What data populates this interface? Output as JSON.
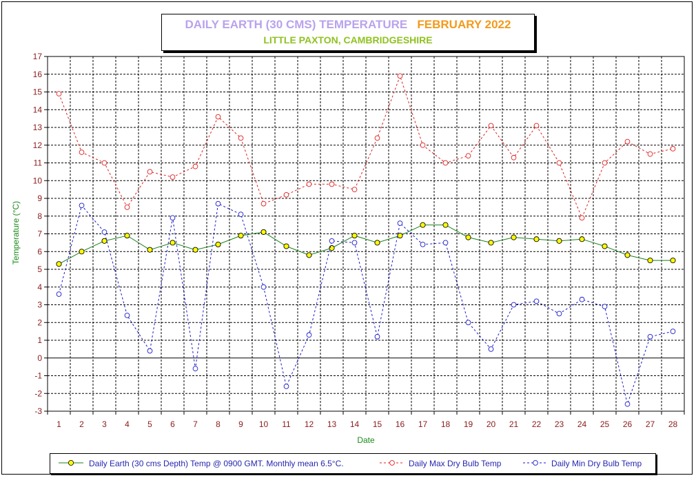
{
  "title": {
    "main": "DAILY EARTH (30 CMS) TEMPERATURE",
    "date": "FEBRUARY 2022",
    "subtitle": "LITTLE PAXTON, CAMBRIDGESHIRE"
  },
  "colors": {
    "title_main": "#b9a2ee",
    "title_date": "#f39a1a",
    "subtitle": "#8fc21f",
    "axis_text": "#8b1a1a",
    "axis_label": "#1a8a1a",
    "earth_line": "#1a7f1a",
    "earth_marker": "#ffff00",
    "max_series": "#e02020",
    "min_series": "#1a1acc",
    "legend_text": "#2626b0"
  },
  "chart_data": {
    "type": "line",
    "xlabel": "Date",
    "ylabel": "Temperature (°C)",
    "ylim": [
      -3,
      17
    ],
    "yticks": [
      -3,
      -2,
      -1,
      0,
      1,
      2,
      3,
      4,
      5,
      6,
      7,
      8,
      9,
      10,
      11,
      12,
      13,
      14,
      15,
      16,
      17
    ],
    "grid": true,
    "legend_position": "bottom",
    "categories": [
      1,
      2,
      3,
      4,
      5,
      6,
      7,
      8,
      9,
      10,
      11,
      12,
      13,
      14,
      15,
      16,
      17,
      18,
      19,
      20,
      21,
      22,
      23,
      24,
      25,
      26,
      27,
      28
    ],
    "series": [
      {
        "name": "Daily Earth (30 cms Depth) Temp @ 0900 GMT. Monthly mean 6.5°C.",
        "style": "solid",
        "marker": "filled-circle",
        "values": [
          5.3,
          6.0,
          6.6,
          6.9,
          6.1,
          6.5,
          6.1,
          6.4,
          6.9,
          7.1,
          6.3,
          5.8,
          6.2,
          6.9,
          6.5,
          6.9,
          7.5,
          7.5,
          6.8,
          6.5,
          6.8,
          6.7,
          6.6,
          6.7,
          6.3,
          5.8,
          5.5,
          5.5
        ]
      },
      {
        "name": "Daily Max Dry Bulb Temp",
        "style": "dashed",
        "marker": "open-circle",
        "values": [
          14.9,
          11.6,
          11.0,
          8.5,
          10.5,
          10.2,
          10.8,
          13.6,
          12.4,
          8.7,
          9.2,
          9.8,
          9.8,
          9.5,
          12.4,
          15.9,
          12.0,
          11.0,
          11.4,
          13.1,
          11.3,
          13.1,
          11.0,
          7.9,
          11.0,
          12.2,
          11.5,
          11.8
        ]
      },
      {
        "name": "Daily Min Dry Bulb Temp",
        "style": "dashed",
        "marker": "open-circle",
        "values": [
          3.6,
          8.6,
          7.1,
          2.4,
          0.4,
          7.9,
          -0.6,
          8.7,
          8.1,
          4.0,
          -1.6,
          1.3,
          6.6,
          6.5,
          1.2,
          7.6,
          6.4,
          6.5,
          2.0,
          0.5,
          3.0,
          3.2,
          2.5,
          3.3,
          2.9,
          -2.6,
          1.2,
          1.5
        ]
      }
    ]
  }
}
